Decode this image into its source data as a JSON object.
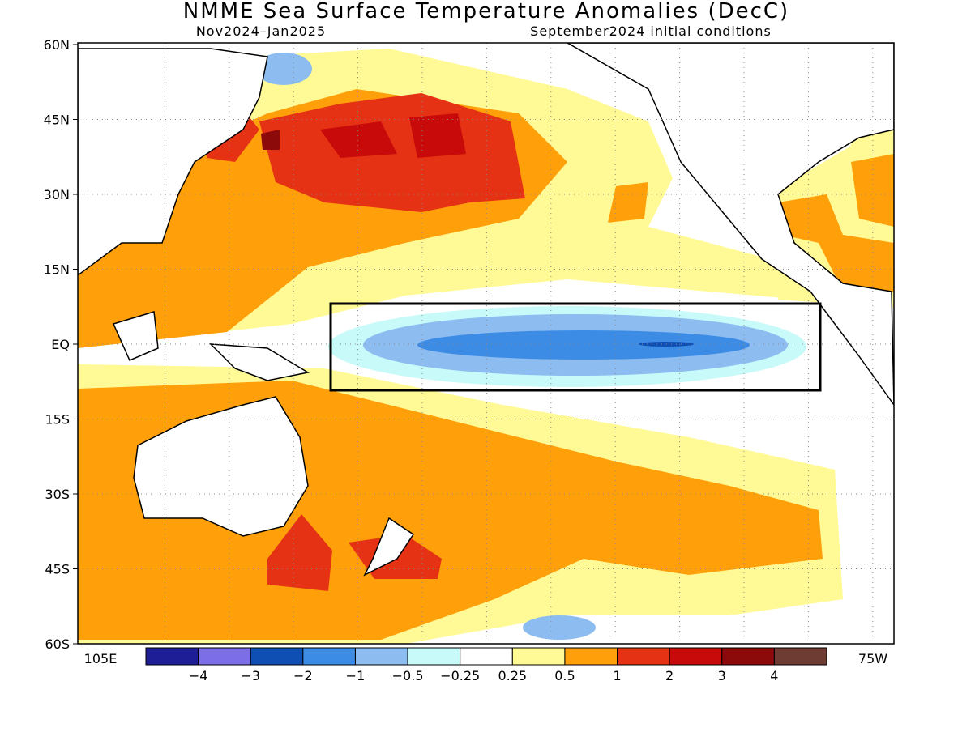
{
  "title": "NMME Sea Surface Temperature Anomalies (DecC)",
  "period": "Nov2024–Jan2025",
  "initial_conditions": "September2024 initial conditions",
  "lat_labels": [
    "60N",
    "45N",
    "30N",
    "15N",
    "EQ",
    "15S",
    "30S",
    "45S",
    "60S"
  ],
  "lon_labels": [
    "105E",
    "75W"
  ],
  "colorbar": {
    "colors": [
      "#1e1e96",
      "#7b6ee6",
      "#0f4fb4",
      "#3c8ce6",
      "#8cbcf0",
      "#c8fafa",
      "#ffffff",
      "#fffa96",
      "#ffa00a",
      "#e63214",
      "#c80a0a",
      "#8c0a0a",
      "#6e3c32"
    ],
    "labels": [
      "−4",
      "−3",
      "−2",
      "−1",
      "−0.5",
      "−0.25",
      "0.25",
      "0.5",
      "1",
      "2",
      "3",
      "4"
    ]
  }
}
